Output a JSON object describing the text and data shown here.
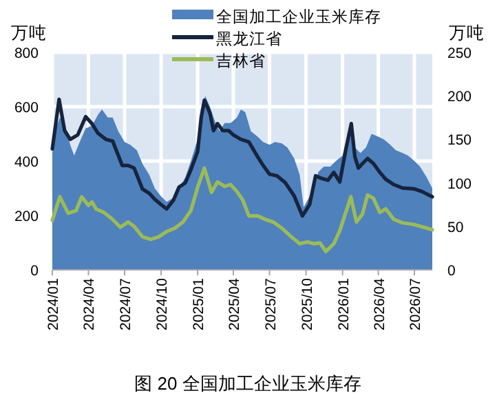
{
  "chart_data": {
    "type": "line",
    "title": "图 20 全国加工企业玉米库存",
    "ylabel": "万吨",
    "y2label": "万吨",
    "grid": true,
    "legend": "top",
    "marker": "none",
    "line_style": "solid",
    "xlim": [
      "2024-01-01",
      "2026-08-15"
    ],
    "xticks": [
      {
        "value": "2024-01-01",
        "label": "2024/01"
      },
      {
        "value": "2024-04-01",
        "label": "2024/04"
      },
      {
        "value": "2024-07-01",
        "label": "2024/07"
      },
      {
        "value": "2024-10-01",
        "label": "2024/10"
      },
      {
        "value": "2025-01-01",
        "label": "2025/01"
      },
      {
        "value": "2025-04-01",
        "label": "2025/04"
      },
      {
        "value": "2025-07-01",
        "label": "2025/07"
      },
      {
        "value": "2025-10-01",
        "label": "2025/10"
      },
      {
        "value": "2026-01-01",
        "label": "2026/01"
      },
      {
        "value": "2026-04-01",
        "label": "2026/04"
      },
      {
        "value": "2026-07-01",
        "label": "2026/07"
      }
    ],
    "ylim": [
      0,
      800
    ],
    "yticks": [
      0,
      200,
      400,
      600,
      800
    ],
    "y2lim": [
      0,
      250
    ],
    "y2ticks": [
      0,
      50,
      100,
      150,
      200,
      250
    ],
    "series": [
      {
        "name": "全国加工企业玉米库存",
        "type": "area",
        "color": "#4f81bd",
        "x": [
          "2024-01-01",
          "2024-01-10",
          "2024-01-20",
          "2024-02-01",
          "2024-02-15",
          "2024-02-25",
          "2024-03-10",
          "2024-03-25",
          "2024-04-10",
          "2024-04-25",
          "2024-05-05",
          "2024-05-20",
          "2024-06-01",
          "2024-06-15",
          "2024-07-01",
          "2024-07-15",
          "2024-08-01",
          "2024-08-15",
          "2024-09-01",
          "2024-09-15",
          "2024-10-01",
          "2024-10-15",
          "2024-11-01",
          "2024-11-15",
          "2024-12-01",
          "2024-12-15",
          "2025-01-01",
          "2025-01-10",
          "2025-01-20",
          "2025-02-01",
          "2025-02-15",
          "2025-02-25",
          "2025-03-10",
          "2025-03-25",
          "2025-04-10",
          "2025-04-20",
          "2025-05-01",
          "2025-05-15",
          "2025-06-01",
          "2025-06-15",
          "2025-07-01",
          "2025-07-15",
          "2025-08-01",
          "2025-08-15",
          "2025-09-01",
          "2025-09-15",
          "2025-09-25",
          "2025-10-10",
          "2025-10-20",
          "2025-11-01",
          "2025-11-15",
          "2025-12-01",
          "2025-12-15",
          "2026-01-01",
          "2026-01-20",
          "2026-02-01",
          "2026-02-15",
          "2026-03-01",
          "2026-03-15",
          "2026-04-01",
          "2026-04-15",
          "2026-05-01",
          "2026-05-15",
          "2026-06-01",
          "2026-06-15",
          "2026-07-01",
          "2026-07-15",
          "2026-08-01",
          "2026-08-15"
        ],
        "values": [
          430,
          520,
          560,
          540,
          460,
          420,
          470,
          520,
          530,
          570,
          590,
          560,
          560,
          510,
          470,
          460,
          440,
          390,
          350,
          300,
          270,
          250,
          265,
          300,
          340,
          400,
          480,
          560,
          640,
          600,
          540,
          510,
          540,
          540,
          560,
          590,
          580,
          510,
          490,
          470,
          460,
          470,
          465,
          450,
          410,
          350,
          230,
          270,
          300,
          360,
          380,
          380,
          400,
          420,
          540,
          450,
          430,
          450,
          500,
          490,
          480,
          460,
          440,
          430,
          420,
          400,
          380,
          340,
          300
        ]
      },
      {
        "name": "黑龙江省",
        "axis": "y2",
        "color": "#17243d",
        "x": [
          "2024-01-01",
          "2024-01-18",
          "2024-02-01",
          "2024-02-15",
          "2024-03-05",
          "2024-03-25",
          "2024-04-10",
          "2024-04-25",
          "2024-05-15",
          "2024-06-01",
          "2024-06-25",
          "2024-07-10",
          "2024-07-25",
          "2024-08-15",
          "2024-09-01",
          "2024-09-15",
          "2024-10-01",
          "2024-10-15",
          "2024-11-01",
          "2024-11-15",
          "2024-12-01",
          "2024-12-15",
          "2025-01-01",
          "2025-01-10",
          "2025-01-18",
          "2025-02-01",
          "2025-02-10",
          "2025-02-20",
          "2025-03-05",
          "2025-03-20",
          "2025-04-01",
          "2025-04-20",
          "2025-05-10",
          "2025-06-01",
          "2025-06-15",
          "2025-07-01",
          "2025-07-20",
          "2025-08-10",
          "2025-09-01",
          "2025-09-22",
          "2025-10-10",
          "2025-10-25",
          "2025-11-10",
          "2025-11-25",
          "2025-12-10",
          "2025-12-25",
          "2026-01-10",
          "2026-01-23",
          "2026-02-01",
          "2026-02-10",
          "2026-02-20",
          "2026-03-05",
          "2026-03-20",
          "2026-04-05",
          "2026-04-20",
          "2026-05-10",
          "2026-06-01",
          "2026-07-01",
          "2026-07-20",
          "2026-08-15"
        ],
        "values": [
          139,
          196,
          160,
          150,
          155,
          176,
          168,
          157,
          150,
          148,
          120,
          120,
          117,
          93,
          88,
          81,
          75,
          70,
          80,
          95,
          100,
          115,
          136,
          175,
          195,
          180,
          160,
          168,
          160,
          160,
          155,
          150,
          147,
          130,
          120,
          110,
          108,
          100,
          85,
          62,
          75,
          108,
          105,
          103,
          112,
          101,
          140,
          168,
          130,
          117,
          122,
          128,
          122,
          112,
          104,
          98,
          94,
          93,
          90,
          84
        ]
      },
      {
        "name": "吉林省",
        "axis": "y2",
        "color": "#9bbb59",
        "x": [
          "2024-01-01",
          "2024-01-20",
          "2024-02-10",
          "2024-03-01",
          "2024-03-15",
          "2024-04-01",
          "2024-04-10",
          "2024-04-20",
          "2024-05-10",
          "2024-06-01",
          "2024-06-20",
          "2024-07-10",
          "2024-07-25",
          "2024-08-15",
          "2024-09-05",
          "2024-09-25",
          "2024-10-15",
          "2024-11-05",
          "2024-11-25",
          "2024-12-15",
          "2025-01-01",
          "2025-01-18",
          "2025-02-05",
          "2025-02-20",
          "2025-03-10",
          "2025-03-25",
          "2025-04-10",
          "2025-04-25",
          "2025-05-10",
          "2025-06-01",
          "2025-06-20",
          "2025-07-10",
          "2025-08-01",
          "2025-08-25",
          "2025-09-15",
          "2025-10-05",
          "2025-10-20",
          "2025-11-05",
          "2025-11-20",
          "2025-12-10",
          "2025-12-25",
          "2026-01-22",
          "2026-02-05",
          "2026-02-20",
          "2026-03-05",
          "2026-03-20",
          "2026-04-05",
          "2026-04-20",
          "2026-05-10",
          "2026-06-01",
          "2026-07-01",
          "2026-08-15"
        ],
        "values": [
          57,
          84,
          65,
          68,
          84,
          74,
          78,
          70,
          66,
          58,
          49,
          55,
          50,
          38,
          35,
          38,
          44,
          48,
          55,
          68,
          95,
          117,
          89,
          101,
          96,
          98,
          90,
          80,
          62,
          62,
          58,
          55,
          48,
          38,
          30,
          32,
          30,
          31,
          21,
          30,
          45,
          84,
          55,
          64,
          86,
          82,
          66,
          70,
          58,
          54,
          52,
          46
        ]
      }
    ]
  }
}
